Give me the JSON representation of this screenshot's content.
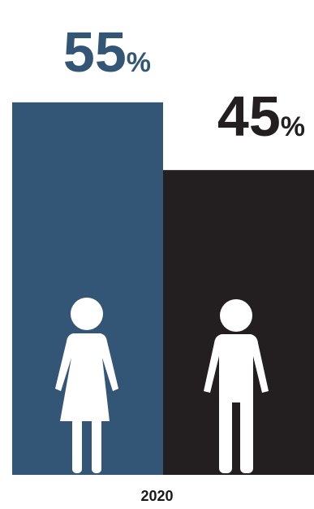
{
  "chart_data": {
    "type": "bar",
    "categories": [
      "women",
      "men"
    ],
    "values": [
      55,
      45
    ],
    "value_suffix": "%",
    "xlabel": "2020",
    "ylim": [
      0,
      100
    ],
    "grid": false,
    "legend": "none",
    "colors": [
      "#335676",
      "#231f20"
    ],
    "label_colors": [
      "#335676",
      "#231f20"
    ],
    "icons": [
      "female-figure-icon",
      "male-figure-icon"
    ]
  }
}
